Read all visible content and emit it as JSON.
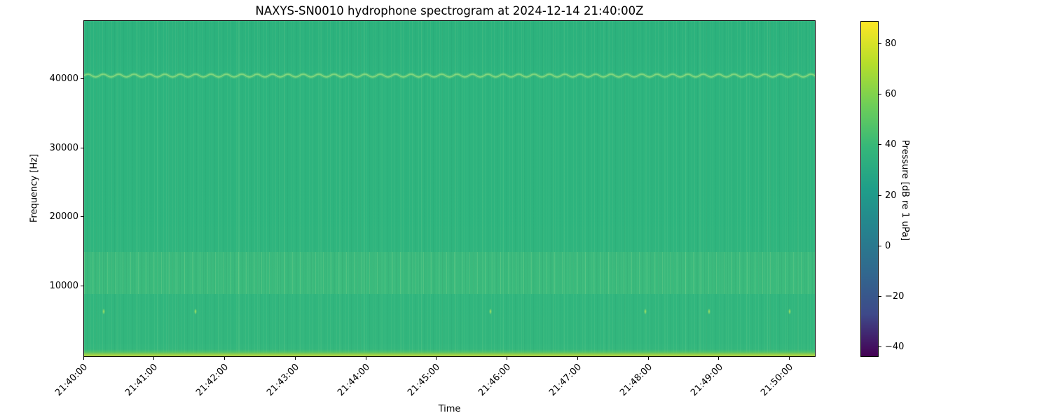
{
  "chart_data": {
    "type": "heatmap",
    "title": "NAXYS-SN0010 hydrophone spectrogram at 2024-12-14 21:40:00Z",
    "xlabel": "Time",
    "ylabel": "Frequency [Hz]",
    "x_ticks": [
      "21:40:00",
      "21:41:00",
      "21:42:00",
      "21:43:00",
      "21:44:00",
      "21:45:00",
      "21:46:00",
      "21:47:00",
      "21:48:00",
      "21:49:00",
      "21:50:00"
    ],
    "x_tick_minutes": [
      0,
      1,
      2,
      3,
      4,
      5,
      6,
      7,
      8,
      9,
      10
    ],
    "x_axis_minutes": [
      0,
      10.37
    ],
    "x_tick_rotation_deg": 45,
    "y_ticks_hz": [
      10000,
      20000,
      30000,
      40000
    ],
    "y_tick_labels": [
      "10000",
      "20000",
      "30000",
      "40000"
    ],
    "ylim_hz": [
      -300,
      48500
    ],
    "grid": false,
    "colorbar": {
      "label": "Pressure [dB re 1 uPa]",
      "ticks_db": [
        80,
        60,
        40,
        20,
        0,
        -20,
        -40
      ],
      "tick_labels": [
        "80",
        "60",
        "40",
        "20",
        "0",
        "−20",
        "−40"
      ],
      "clim_db": [
        -44,
        89
      ],
      "colormap": "viridis",
      "colormap_stops_top_to_bottom": [
        "#fde725",
        "#b5de2b",
        "#6ece58",
        "#35b779",
        "#1f9e89",
        "#26828e",
        "#31688e",
        "#3e4989",
        "#440154"
      ]
    },
    "content": {
      "description": "Largely uniform ambient field around 45 dB (mid-green) for the full 10-minute window with faint vertical striations",
      "background_level_db": 45,
      "base_color": "#2db47e",
      "features": [
        {
          "name": "low-frequency-surface-noise-band",
          "freq_hz": [
            0,
            700
          ],
          "level_db": [
            60,
            78
          ]
        },
        {
          "name": "elevated-broadband-band",
          "freq_hz": [
            8800,
            14900
          ],
          "level_db": 48
        },
        {
          "name": "wavy-narrowband-tone",
          "freq_hz": 40600,
          "level_db": 50,
          "wave_amplitude_hz": 300
        },
        {
          "name": "transient-clicks",
          "freq_hz": 6200,
          "level_db": 57,
          "times": [
            "21:40:17",
            "21:41:35",
            "21:45:46",
            "21:47:58",
            "21:48:52",
            "21:50:01"
          ]
        },
        {
          "name": "faint-vertical-noise-streaks",
          "minutes_after_start": [
            1.2,
            2.19,
            2.84,
            3.98,
            5.27,
            6.66,
            7.45,
            8.74,
            9.73,
            10.13
          ],
          "opacity": [
            0.05,
            0.06,
            0.05,
            0.07,
            0.05,
            0.06,
            0.05,
            0.07,
            0.06,
            0.08
          ]
        }
      ]
    }
  }
}
